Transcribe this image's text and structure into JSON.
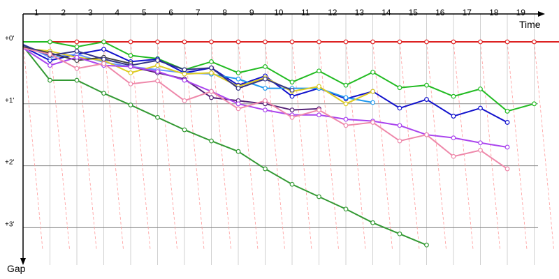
{
  "chart_data": {
    "type": "line",
    "title": "",
    "xlabel": "Time",
    "ylabel": "Gap",
    "x_ticks": [
      "1",
      "2",
      "3",
      "4",
      "5",
      "6",
      "7",
      "8",
      "9",
      "10",
      "11",
      "12",
      "13",
      "14",
      "15",
      "16",
      "17",
      "18",
      "19"
    ],
    "y_ticks": [
      "+0'",
      "+1'",
      "+2'",
      "+3'"
    ],
    "y_tick_values": [
      0,
      1,
      2,
      3
    ],
    "xlim": [
      0.05,
      20.3
    ],
    "ylim": [
      0,
      3.35
    ],
    "y_inverted": true,
    "grid": true,
    "legend": "none",
    "series": [
      {
        "color": "#dd2222",
        "values": [
          [
            0,
            0
          ],
          [
            1,
            0
          ],
          [
            2,
            0
          ],
          [
            3,
            0
          ],
          [
            4,
            0
          ],
          [
            5,
            0
          ],
          [
            6,
            0
          ],
          [
            7,
            0
          ],
          [
            8,
            0
          ],
          [
            9,
            0
          ],
          [
            10,
            0
          ],
          [
            11,
            0
          ],
          [
            12,
            0
          ],
          [
            13,
            0
          ],
          [
            14,
            0
          ],
          [
            15,
            0
          ],
          [
            16,
            0
          ],
          [
            17,
            0
          ],
          [
            18,
            0
          ],
          [
            19,
            0
          ],
          [
            20,
            0
          ]
        ]
      },
      {
        "color": "#22bb22",
        "values": [
          [
            0,
            0
          ],
          [
            1,
            0
          ],
          [
            2,
            0.08
          ],
          [
            3,
            0
          ],
          [
            4,
            0.22
          ],
          [
            5,
            0.27
          ],
          [
            6,
            0.45
          ],
          [
            7,
            0.32
          ],
          [
            8,
            0.5
          ],
          [
            9,
            0.4
          ],
          [
            10,
            0.65
          ],
          [
            11,
            0.47
          ],
          [
            12,
            0.7
          ],
          [
            13,
            0.49
          ],
          [
            14,
            0.74
          ],
          [
            15,
            0.7
          ],
          [
            16,
            0.88
          ],
          [
            17,
            0.76
          ],
          [
            18,
            1.12
          ],
          [
            19,
            1.0
          ]
        ]
      },
      {
        "color": "#339933",
        "values": [
          [
            0,
            0.07
          ],
          [
            1,
            0.62
          ],
          [
            2,
            0.62
          ],
          [
            3,
            0.83
          ],
          [
            4,
            1.02
          ],
          [
            5,
            1.22
          ],
          [
            6,
            1.42
          ],
          [
            7,
            1.6
          ],
          [
            8,
            1.77
          ],
          [
            9,
            2.05
          ],
          [
            10,
            2.3
          ],
          [
            11,
            2.5
          ],
          [
            12,
            2.7
          ],
          [
            13,
            2.92
          ],
          [
            14,
            3.1
          ],
          [
            15,
            3.28
          ]
        ]
      },
      {
        "color": "#1111cc",
        "values": [
          [
            0,
            0.08
          ],
          [
            1,
            0.3
          ],
          [
            2,
            0.2
          ],
          [
            3,
            0.12
          ],
          [
            4,
            0.32
          ],
          [
            5,
            0.28
          ],
          [
            6,
            0.5
          ],
          [
            7,
            0.42
          ],
          [
            8,
            0.7
          ],
          [
            9,
            0.55
          ],
          [
            10,
            0.88
          ],
          [
            11,
            0.75
          ],
          [
            12,
            0.92
          ],
          [
            13,
            0.8
          ],
          [
            14,
            1.07
          ],
          [
            15,
            0.93
          ],
          [
            16,
            1.2
          ],
          [
            17,
            1.07
          ],
          [
            18,
            1.3
          ]
        ]
      },
      {
        "color": "#6699ff",
        "values": [
          [
            0,
            0.04
          ],
          [
            1,
            0.25
          ],
          [
            2,
            0.2
          ],
          [
            3,
            0.33
          ],
          [
            4,
            0.4
          ],
          [
            5,
            0.45
          ],
          [
            6,
            0.5
          ],
          [
            7,
            0.52
          ]
        ]
      },
      {
        "color": "#2299ee",
        "values": [
          [
            7,
            0.52
          ],
          [
            8,
            0.6
          ],
          [
            9,
            0.75
          ],
          [
            10,
            0.75
          ],
          [
            11,
            0.75
          ],
          [
            12,
            0.9
          ],
          [
            13,
            0.98
          ]
        ]
      },
      {
        "color": "#ddcc22",
        "values": [
          [
            0,
            0.1
          ],
          [
            1,
            0.15
          ],
          [
            2,
            0.25
          ],
          [
            3,
            0.3
          ],
          [
            4,
            0.5
          ],
          [
            5,
            0.38
          ],
          [
            6,
            0.52
          ],
          [
            7,
            0.5
          ],
          [
            8,
            0.72
          ],
          [
            9,
            0.58
          ],
          [
            10,
            0.8
          ],
          [
            11,
            0.72
          ],
          [
            12,
            1.0
          ],
          [
            13,
            0.8
          ]
        ]
      },
      {
        "color": "#444444",
        "values": [
          [
            0,
            0.08
          ],
          [
            1,
            0.18
          ],
          [
            2,
            0.3
          ],
          [
            3,
            0.25
          ],
          [
            4,
            0.35
          ]
        ]
      },
      {
        "color": "#333388",
        "values": [
          [
            0,
            0.05
          ],
          [
            1,
            0.22
          ],
          [
            2,
            0.15
          ],
          [
            3,
            0.28
          ],
          [
            4,
            0.38
          ],
          [
            5,
            0.3
          ],
          [
            6,
            0.45
          ],
          [
            7,
            0.42
          ],
          [
            8,
            0.75
          ],
          [
            9,
            0.6
          ],
          [
            10,
            0.78
          ]
        ]
      },
      {
        "color": "#552277",
        "values": [
          [
            4,
            0.4
          ],
          [
            5,
            0.5
          ],
          [
            6,
            0.6
          ],
          [
            7,
            0.9
          ],
          [
            8,
            0.95
          ],
          [
            9,
            1.0
          ],
          [
            10,
            1.1
          ],
          [
            11,
            1.08
          ]
        ]
      },
      {
        "color": "#aa44ee",
        "values": [
          [
            0,
            0.1
          ],
          [
            1,
            0.38
          ],
          [
            2,
            0.25
          ],
          [
            3,
            0.38
          ],
          [
            4,
            0.4
          ],
          [
            5,
            0.48
          ],
          [
            6,
            0.62
          ],
          [
            7,
            0.8
          ],
          [
            8,
            1.0
          ],
          [
            9,
            1.1
          ],
          [
            10,
            1.18
          ],
          [
            11,
            1.18
          ],
          [
            12,
            1.25
          ],
          [
            13,
            1.28
          ],
          [
            14,
            1.35
          ],
          [
            15,
            1.5
          ],
          [
            16,
            1.55
          ],
          [
            17,
            1.63
          ],
          [
            18,
            1.7
          ]
        ]
      },
      {
        "color": "#ee88aa",
        "values": [
          [
            0,
            0.1
          ],
          [
            1,
            0.2
          ],
          [
            2,
            0.43
          ],
          [
            3,
            0.35
          ],
          [
            4,
            0.68
          ],
          [
            5,
            0.63
          ],
          [
            6,
            0.95
          ],
          [
            7,
            0.8
          ],
          [
            8,
            1.08
          ],
          [
            9,
            0.95
          ],
          [
            10,
            1.22
          ],
          [
            11,
            1.1
          ],
          [
            12,
            1.35
          ],
          [
            13,
            1.3
          ],
          [
            14,
            1.6
          ],
          [
            15,
            1.5
          ],
          [
            16,
            1.85
          ],
          [
            17,
            1.75
          ],
          [
            18,
            2.05
          ]
        ]
      }
    ],
    "markers_open": true
  }
}
